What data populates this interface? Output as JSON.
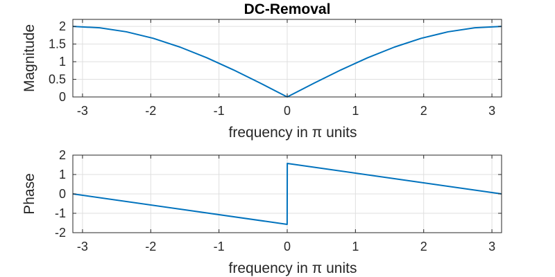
{
  "chart_data": [
    {
      "type": "line",
      "title": "DC-Removal",
      "xlabel": "frequency in π units",
      "ylabel": "Magnitude",
      "xlim": [
        -3.1416,
        3.1416
      ],
      "ylim": [
        0,
        2.2
      ],
      "xticks": [
        -3,
        -2,
        -1,
        0,
        1,
        2,
        3
      ],
      "xtick_labels": [
        "-3",
        "-2",
        "-1",
        "0",
        "1",
        "2",
        "3"
      ],
      "yticks": [
        0,
        0.5,
        1,
        1.5,
        2
      ],
      "ytick_labels": [
        "0",
        "0.5",
        "1",
        "1.5",
        "2"
      ],
      "grid": true,
      "line_color": "#0072BD",
      "series": [
        {
          "x": [
            -3.1416,
            -2.7489,
            -2.3562,
            -1.9635,
            -1.5708,
            -1.1781,
            -0.7854,
            -0.3927,
            0,
            0.3927,
            0.7854,
            1.1781,
            1.5708,
            1.9635,
            2.3562,
            2.7489,
            3.1416
          ],
          "values": [
            2.0,
            1.9616,
            1.8478,
            1.6629,
            1.4142,
            1.1111,
            0.7654,
            0.3902,
            0.0,
            0.3902,
            0.7654,
            1.1111,
            1.4142,
            1.6629,
            1.8478,
            1.9616,
            2.0
          ]
        }
      ]
    },
    {
      "type": "line",
      "title": "",
      "xlabel": "frequency in π units",
      "ylabel": "Phase",
      "xlim": [
        -3.1416,
        3.1416
      ],
      "ylim": [
        -2,
        2
      ],
      "xticks": [
        -3,
        -2,
        -1,
        0,
        1,
        2,
        3
      ],
      "xtick_labels": [
        "-3",
        "-2",
        "-1",
        "0",
        "1",
        "2",
        "3"
      ],
      "yticks": [
        -2,
        -1,
        0,
        1,
        2
      ],
      "ytick_labels": [
        "-2",
        "-1",
        "0",
        "1",
        "2"
      ],
      "grid": true,
      "line_color": "#0072BD",
      "series": [
        {
          "x": [
            -3.1416,
            -1.5708,
            -0.001,
            0.001,
            1.5708,
            3.1416
          ],
          "values": [
            0.0,
            -0.7854,
            -1.5703,
            1.5703,
            0.7854,
            0.0
          ]
        }
      ]
    }
  ]
}
